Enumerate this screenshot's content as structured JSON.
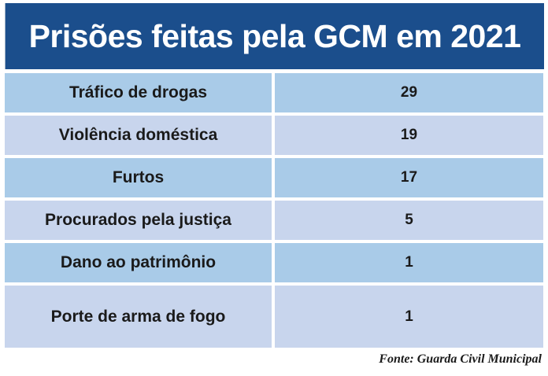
{
  "header": {
    "title": "Prisões feitas pela GCM em 2021"
  },
  "chart_data": {
    "type": "table",
    "title": "Prisões feitas pela GCM em 2021",
    "categories": [
      "Tráfico de drogas",
      "Violência doméstica",
      "Furtos",
      "Procurados pela justiça",
      "Dano ao patrimônio",
      "Porte de arma de fogo"
    ],
    "values": [
      29,
      19,
      17,
      5,
      1,
      1
    ],
    "columns": [
      "category",
      "count"
    ],
    "legend_position": "none",
    "grid": false,
    "source": "Fonte: Guarda Civil Municipal"
  },
  "footer": {
    "source_credit": "Fonte: Guarda Civil Municipal"
  },
  "colors": {
    "header_bg": "#1B4E8C",
    "header_text": "#FFFFFF",
    "row_odd_bg": "#A9CBE8",
    "row_even_bg": "#C8D5ED",
    "cell_text": "#1A1A1A",
    "page_bg": "#FFFFFF"
  }
}
